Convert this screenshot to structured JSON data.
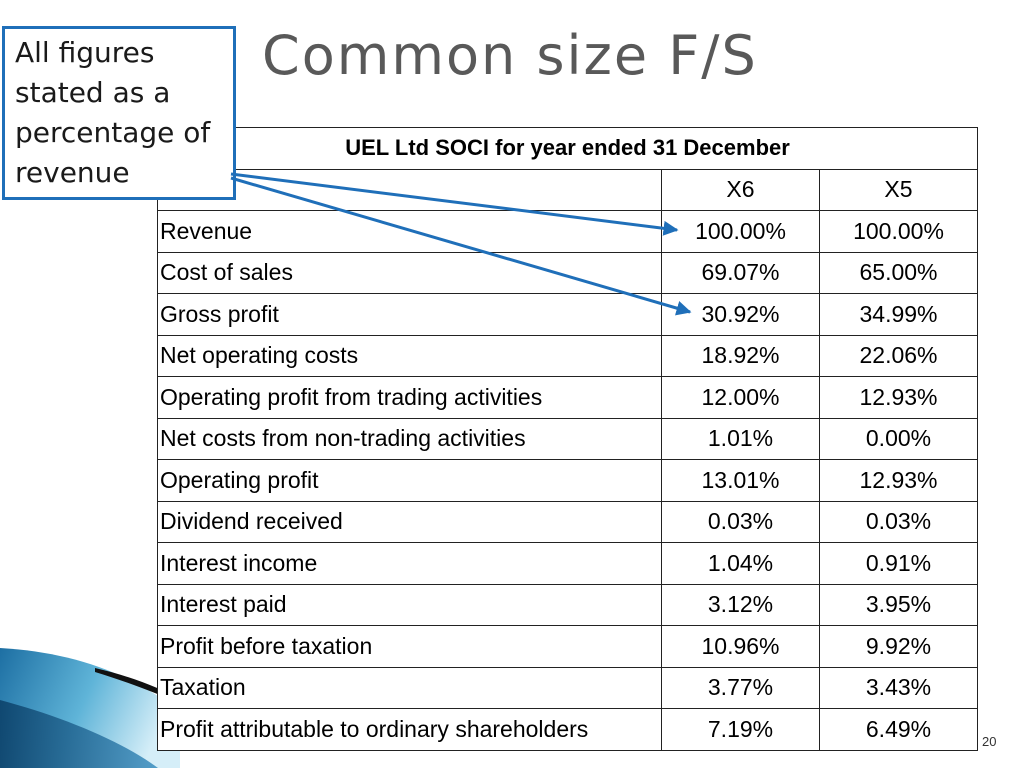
{
  "slide": {
    "title": "Common size F/S",
    "callout": "All figures stated as a percentage of revenue",
    "page_number": "20"
  },
  "table": {
    "caption": "UEL Ltd SOCI for year ended 31 December",
    "columns": [
      "X6",
      "X5"
    ],
    "rows": [
      {
        "label": "Revenue",
        "x6": "100.00%",
        "x5": "100.00%"
      },
      {
        "label": "Cost of sales",
        "x6": "69.07%",
        "x5": "65.00%"
      },
      {
        "label": "Gross profit",
        "x6": "30.92%",
        "x5": "34.99%"
      },
      {
        "label": "Net operating costs",
        "x6": "18.92%",
        "x5": "22.06%"
      },
      {
        "label": "Operating profit from trading activities",
        "x6": "12.00%",
        "x5": "12.93%"
      },
      {
        "label": "Net costs from non-trading activities",
        "x6": "1.01%",
        "x5": "0.00%"
      },
      {
        "label": "Operating profit",
        "x6": "13.01%",
        "x5": "12.93%"
      },
      {
        "label": "Dividend received",
        "x6": "0.03%",
        "x5": "0.03%"
      },
      {
        "label": "Interest income",
        "x6": "1.04%",
        "x5": "0.91%"
      },
      {
        "label": "Interest paid",
        "x6": "3.12%",
        "x5": "3.95%"
      },
      {
        "label": "Profit before taxation",
        "x6": "10.96%",
        "x5": "9.92%"
      },
      {
        "label": "Taxation",
        "x6": "3.77%",
        "x5": "3.43%"
      },
      {
        "label": "Profit attributable to ordinary shareholders",
        "x6": "7.19%",
        "x5": "6.49%"
      }
    ]
  },
  "colors": {
    "callout_border": "#1f6fb9",
    "arrow": "#1f6fb9",
    "title": "#595959"
  }
}
